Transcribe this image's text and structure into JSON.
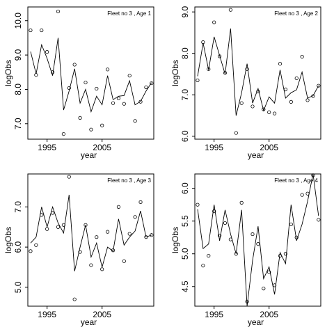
{
  "chart_data": [
    {
      "type": "line",
      "title": "Fleet no 3 , Age 1",
      "xlabel": "year",
      "ylabel": "logObs",
      "x": [
        1992,
        1993,
        1994,
        1995,
        1996,
        1997,
        1998,
        1999,
        2000,
        2001,
        2002,
        2003,
        2004,
        2005,
        2006,
        2007,
        2008,
        2009,
        2010,
        2011,
        2012,
        2013,
        2014
      ],
      "xlim": [
        1991.5,
        2014.4
      ],
      "xticks": [
        1995,
        2005
      ],
      "ylim": [
        6.55,
        10.4
      ],
      "yticks": [
        {
          "value": 7,
          "label": "7.0"
        },
        {
          "value": 8,
          "label": "8.0"
        },
        {
          "value": 9,
          "label": "9.0"
        },
        {
          "value": 10,
          "label": "10.0"
        }
      ],
      "series": [
        {
          "marker": "circle",
          "color": "#000000",
          "values": [
            9.72,
            8.42,
            9.72,
            9.09,
            8.5,
            10.27,
            6.7,
            8.04,
            8.72,
            7.17,
            8.2,
            6.83,
            8.02,
            6.95,
            8.58,
            7.6,
            7.74,
            7.58,
            8.4,
            7.08,
            7.64,
            8.06,
            8.18
          ]
        },
        {
          "marker": "line",
          "color": "#000000",
          "values": [
            9.1,
            8.45,
            9.3,
            8.9,
            8.4,
            9.5,
            7.4,
            7.95,
            8.6,
            7.6,
            8.0,
            7.35,
            7.8,
            7.55,
            8.4,
            7.7,
            7.8,
            7.82,
            8.25,
            7.55,
            7.65,
            7.95,
            8.2
          ]
        }
      ]
    },
    {
      "type": "line",
      "title": "Fleet no 3 , Age 2",
      "xlabel": "year",
      "ylabel": "logObs",
      "x": [
        1992,
        1993,
        1994,
        1995,
        1996,
        1997,
        1998,
        1999,
        2000,
        2001,
        2002,
        2003,
        2004,
        2005,
        2006,
        2007,
        2008,
        2009,
        2010,
        2011,
        2012,
        2013,
        2014
      ],
      "xlim": [
        1991.5,
        2014.4
      ],
      "xticks": [
        1995,
        2005
      ],
      "ylim": [
        5.93,
        9.12
      ],
      "yticks": [
        {
          "value": 6,
          "label": "6.0"
        },
        {
          "value": 7,
          "label": "7.0"
        },
        {
          "value": 8,
          "label": "8.0"
        },
        {
          "value": 9,
          "label": "9.0"
        }
      ],
      "series": [
        {
          "marker": "circle",
          "color": "#000000",
          "values": [
            7.35,
            8.27,
            7.62,
            8.75,
            7.93,
            7.53,
            9.05,
            6.08,
            6.8,
            7.62,
            6.72,
            7.08,
            6.65,
            6.58,
            6.55,
            7.75,
            7.13,
            6.83,
            7.4,
            7.92,
            6.87,
            6.97,
            7.22
          ]
        },
        {
          "marker": "line",
          "color": "#000000",
          "values": [
            7.45,
            8.25,
            7.6,
            8.4,
            7.95,
            7.5,
            8.6,
            6.5,
            7.05,
            7.75,
            6.8,
            7.15,
            6.62,
            6.95,
            6.8,
            7.6,
            6.92,
            7.05,
            7.12,
            7.55,
            6.92,
            6.98,
            7.22
          ]
        }
      ]
    },
    {
      "type": "line",
      "title": "Fleet no 3 , Age 3",
      "xlabel": "year",
      "ylabel": "logObs",
      "x": [
        1992,
        1993,
        1994,
        1995,
        1996,
        1997,
        1998,
        1999,
        2000,
        2001,
        2002,
        2003,
        2004,
        2005,
        2006,
        2007,
        2008,
        2009,
        2010,
        2011,
        2012,
        2013,
        2014
      ],
      "xlim": [
        1991.5,
        2014.4
      ],
      "xticks": [
        1995,
        2005
      ],
      "ylim": [
        4.53,
        7.82
      ],
      "yticks": [
        {
          "value": 5,
          "label": "5.0"
        },
        {
          "value": 6,
          "label": "6.0"
        },
        {
          "value": 7,
          "label": "7.0"
        }
      ],
      "series": [
        {
          "marker": "circle",
          "color": "#000000",
          "values": [
            5.9,
            6.05,
            6.8,
            6.45,
            6.85,
            6.5,
            6.55,
            7.75,
            4.7,
            5.88,
            6.55,
            5.55,
            6.25,
            5.45,
            6.38,
            5.92,
            7.0,
            5.65,
            6.33,
            6.75,
            7.12,
            6.25,
            6.3
          ]
        },
        {
          "marker": "line",
          "color": "#000000",
          "values": [
            6.1,
            6.25,
            7.0,
            6.5,
            7.0,
            6.6,
            6.35,
            7.3,
            5.4,
            6.0,
            6.55,
            5.75,
            6.1,
            5.5,
            6.0,
            5.9,
            6.7,
            6.05,
            6.25,
            6.4,
            6.9,
            6.25,
            6.3
          ]
        }
      ]
    },
    {
      "type": "line",
      "title": "Fleet no 3 , Age 4",
      "xlabel": "year",
      "ylabel": "logObs",
      "x": [
        1992,
        1993,
        1994,
        1995,
        1996,
        1997,
        1998,
        1999,
        2000,
        2001,
        2002,
        2003,
        2004,
        2005,
        2006,
        2007,
        2008,
        2009,
        2010,
        2011,
        2012,
        2013,
        2014
      ],
      "xlim": [
        1991.5,
        2014.4
      ],
      "xticks": [
        1995,
        2005
      ],
      "ylim": [
        4.2,
        6.22
      ],
      "yticks": [
        4.5,
        {
          "value": 5,
          "label": "5.0"
        },
        5.5,
        {
          "value": 6,
          "label": "6.0"
        }
      ],
      "series": [
        {
          "marker": "circle",
          "color": "#000000",
          "values": [
            5.75,
            4.82,
            4.97,
            5.65,
            5.28,
            5.47,
            5.22,
            5.0,
            5.78,
            4.27,
            5.3,
            5.15,
            4.47,
            4.72,
            4.52,
            4.97,
            5.0,
            5.45,
            5.25,
            5.9,
            5.92,
            6.2,
            5.52
          ]
        },
        {
          "marker": "line",
          "color": "#000000",
          "values": [
            5.68,
            5.08,
            5.15,
            5.75,
            5.2,
            5.67,
            5.3,
            5.0,
            5.67,
            4.2,
            4.9,
            5.42,
            4.62,
            4.8,
            4.38,
            5.02,
            4.85,
            5.75,
            5.2,
            5.45,
            5.8,
            6.22,
            5.58
          ]
        }
      ]
    }
  ]
}
